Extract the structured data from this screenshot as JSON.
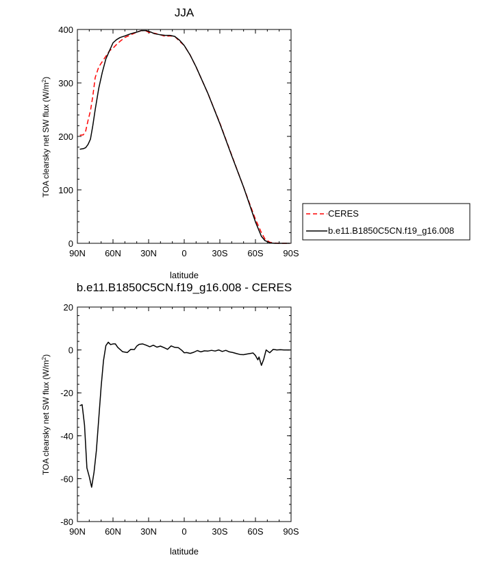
{
  "chart_data": [
    {
      "type": "line",
      "title": "JJA",
      "xlabel": "latitude",
      "ylabel": "TOA clearsky net SW flux (W/m²)",
      "ylim": [
        0,
        400
      ],
      "yticks": [
        0,
        100,
        200,
        300,
        400
      ],
      "xlim": [
        90,
        -90
      ],
      "xticks": [
        90,
        60,
        30,
        0,
        -30,
        -60,
        -90
      ],
      "xtick_labels": [
        "90N",
        "60N",
        "30N",
        "0",
        "30S",
        "60S",
        "90S"
      ],
      "legend": "outside-right",
      "grid": false,
      "series": [
        {
          "name": "CERES",
          "color": "#ff0000",
          "dashed": true,
          "x": [
            88,
            85,
            83,
            81,
            79,
            77,
            75,
            72,
            69,
            66,
            63,
            60,
            57,
            54,
            50,
            45,
            40,
            36,
            32,
            28,
            25,
            20,
            16,
            12,
            8,
            4,
            0,
            -5,
            -10,
            -20,
            -30,
            -40,
            -50,
            -55,
            -60,
            -65,
            -68,
            -72,
            -76,
            -80,
            -85,
            -89
          ],
          "y": [
            202,
            203,
            210,
            230,
            248,
            275,
            310,
            330,
            340,
            350,
            360,
            365,
            372,
            378,
            385,
            390,
            395,
            398,
            397,
            393,
            393,
            390,
            387,
            388,
            387,
            378,
            370,
            352,
            330,
            280,
            225,
            165,
            105,
            75,
            45,
            20,
            8,
            2,
            0.5,
            0,
            0,
            0
          ]
        },
        {
          "name": "b.e11.B1850C5CN.f19_g16.008",
          "color": "#000000",
          "dashed": false,
          "x": [
            88,
            85,
            83,
            81,
            79,
            77,
            75,
            72,
            69,
            66,
            63,
            60,
            57,
            54,
            50,
            45,
            40,
            36,
            32,
            28,
            25,
            20,
            16,
            12,
            8,
            4,
            0,
            -5,
            -10,
            -20,
            -30,
            -40,
            -50,
            -55,
            -60,
            -65,
            -68,
            -72,
            -76,
            -80,
            -85,
            -89
          ],
          "y": [
            176,
            177,
            179,
            185,
            195,
            220,
            250,
            290,
            320,
            345,
            360,
            375,
            381,
            385,
            388,
            392,
            395,
            398,
            398,
            395,
            392,
            390,
            389,
            389,
            387,
            380,
            370,
            352,
            330,
            280,
            224,
            164,
            105,
            73,
            40,
            13,
            5,
            1,
            0,
            0,
            0,
            0
          ]
        }
      ]
    },
    {
      "type": "line",
      "title": "b.e11.B1850C5CN.f19_g16.008 - CERES",
      "xlabel": "latitude",
      "ylabel": "TOA clearsky net SW flux (W/m²)",
      "ylim": [
        -80,
        20
      ],
      "yticks": [
        -80,
        -60,
        -40,
        -20,
        0,
        20
      ],
      "xlim": [
        90,
        -90
      ],
      "xticks": [
        90,
        60,
        30,
        0,
        -30,
        -60,
        -90
      ],
      "xtick_labels": [
        "90N",
        "60N",
        "30N",
        "0",
        "30S",
        "60S",
        "90S"
      ],
      "grid": false,
      "series": [
        {
          "color": "#000000",
          "x": [
            88,
            86,
            84,
            82,
            80,
            78,
            76,
            74,
            72,
            70,
            68,
            66,
            64,
            62,
            60,
            58,
            56,
            52,
            48,
            45,
            42,
            40,
            38,
            35,
            32,
            29,
            26,
            23,
            20,
            17,
            14,
            11,
            8,
            5,
            2,
            0,
            -2,
            -5,
            -8,
            -11,
            -14,
            -17,
            -20,
            -23,
            -26,
            -29,
            -32,
            -35,
            -38,
            -41,
            -44,
            -47,
            -50,
            -53,
            -56,
            -58,
            -60,
            -62,
            -63,
            -65,
            -67,
            -69,
            -72,
            -75,
            -78,
            -81,
            -84,
            -87,
            -89
          ],
          "y": [
            -26,
            -25.5,
            -35,
            -55,
            -59,
            -64,
            -57,
            -47,
            -32,
            -17,
            -5,
            2,
            3.6,
            2.5,
            2.8,
            2.8,
            1.2,
            -0.8,
            -1.2,
            0.3,
            0.2,
            1.8,
            2.6,
            2.8,
            2.2,
            1.5,
            2.2,
            1.3,
            1.8,
            1.1,
            0.3,
            1.9,
            1.2,
            1.1,
            -0.2,
            -1.3,
            -1.2,
            -1.6,
            -1.1,
            -0.3,
            -0.9,
            -0.4,
            -0.5,
            -0.2,
            -0.5,
            0,
            -0.7,
            -0.2,
            -0.9,
            -1.2,
            -1.7,
            -2.1,
            -2.2,
            -1.9,
            -1.6,
            -1.4,
            -2.6,
            -4.6,
            -3.3,
            -7.2,
            -4.3,
            0,
            -1.3,
            0.3,
            0,
            0.1,
            0,
            0,
            0
          ]
        }
      ]
    }
  ]
}
